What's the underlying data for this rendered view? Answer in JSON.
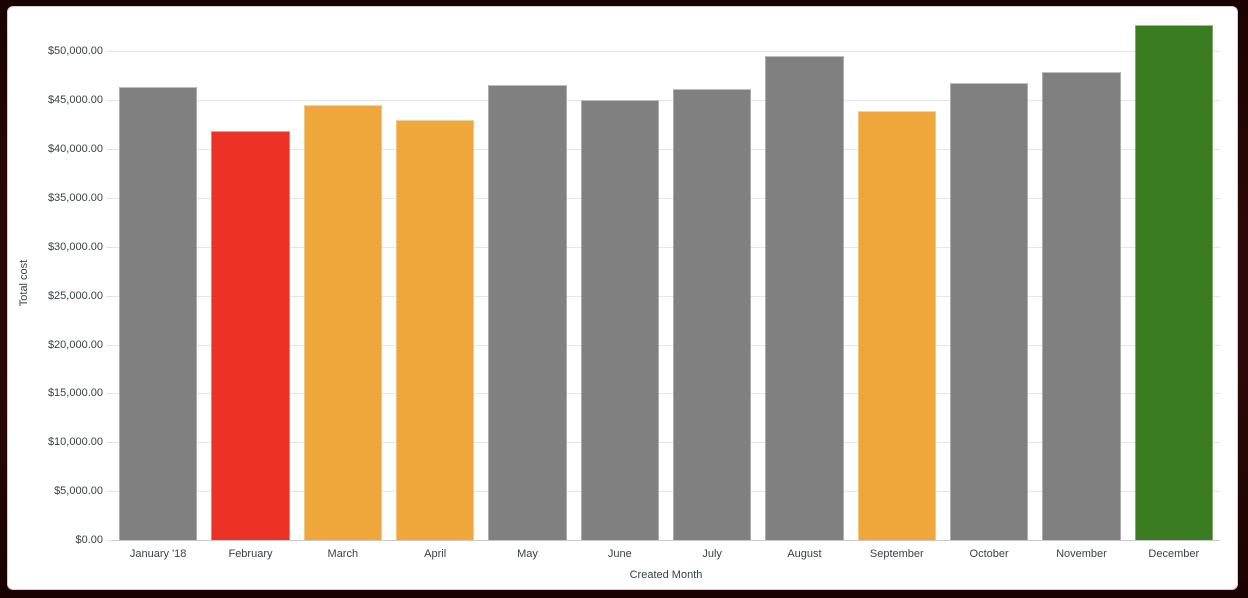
{
  "window": {
    "border_color": "#2e0808",
    "panel_background": "#ffffff"
  },
  "chart_data": {
    "type": "bar",
    "title": "",
    "xlabel": "Created Month",
    "ylabel": "Total cost",
    "categories": [
      "January '18",
      "February",
      "March",
      "April",
      "May",
      "June",
      "July",
      "August",
      "September",
      "October",
      "November",
      "December"
    ],
    "values": [
      46500,
      42000,
      44600,
      43050,
      46700,
      45150,
      46300,
      49650,
      44050,
      46900,
      48000,
      52800
    ],
    "bar_colors": [
      "#808080",
      "#EC3224",
      "#EFA73C",
      "#EFA73C",
      "#808080",
      "#808080",
      "#808080",
      "#808080",
      "#EFA73C",
      "#808080",
      "#808080",
      "#3A7D20"
    ],
    "ylim": [
      0,
      52800
    ],
    "y_ticks": [
      0,
      5000,
      10000,
      15000,
      20000,
      25000,
      30000,
      35000,
      40000,
      45000,
      50000
    ],
    "y_tick_labels": [
      "$0.00",
      "$5,000.00",
      "$10,000.00",
      "$15,000.00",
      "$20,000.00",
      "$25,000.00",
      "$30,000.00",
      "$35,000.00",
      "$40,000.00",
      "$45,000.00",
      "$50,000.00"
    ],
    "grid": true,
    "legend_position": "none"
  },
  "colors": {
    "grid": "#e6e6e6",
    "axis_line": "#c9c9c9",
    "tick": "#dedede",
    "text": "#3a4245",
    "gray_series": "#808080",
    "red_accent": "#EC3224",
    "orange_accent": "#EFA73C",
    "green_accent": "#3A7D20"
  }
}
